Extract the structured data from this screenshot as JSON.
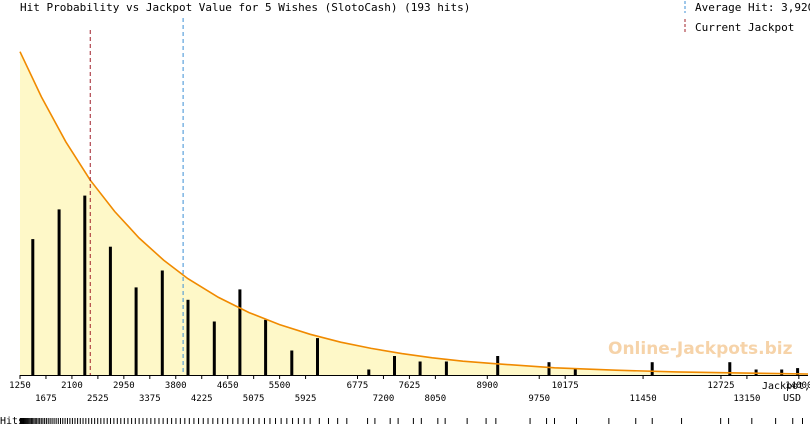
{
  "chart_data": {
    "type": "bar",
    "title": "Hit Probability vs Jackpot Value for 5 Wishes (SlotoCash) (193 hits)",
    "xlabel_line1": "Jackpot,",
    "xlabel_line2": "USD",
    "rug_label": "Hits",
    "watermark": "Online-Jackpots.biz",
    "xlim": [
      1250,
      14150
    ],
    "ylim": [
      0,
      1
    ],
    "legend": [
      {
        "label": "Average Hit: 3,920",
        "color": "#3c8fd6",
        "style": "dashed"
      },
      {
        "label": "Current Jackpot",
        "color": "#a0202a",
        "style": "dashed"
      }
    ],
    "reference_lines": {
      "average_hit": 3920,
      "current_jackpot": 2400
    },
    "ticks_row1": [
      1250,
      2100,
      2950,
      3800,
      4650,
      5500,
      6775,
      7625,
      8900,
      10175,
      12725,
      14000
    ],
    "ticks_row2": [
      1675,
      2525,
      3375,
      4225,
      5075,
      5925,
      7200,
      8050,
      9750,
      11450,
      13150
    ],
    "bars": {
      "x": [
        1460,
        1890,
        2310,
        2730,
        3150,
        3580,
        4000,
        4430,
        4850,
        5270,
        5700,
        6120,
        6960,
        7380,
        7800,
        8230,
        9070,
        9910,
        10340,
        11600,
        12870,
        13300,
        13720,
        13980
      ],
      "values": [
        0.394,
        0.48,
        0.52,
        0.372,
        0.254,
        0.303,
        0.218,
        0.155,
        0.248,
        0.16,
        0.071,
        0.107,
        0.016,
        0.055,
        0.039,
        0.039,
        0.055,
        0.037,
        0.02,
        0.037,
        0.037,
        0.016,
        0.016,
        0.02
      ]
    },
    "curve": {
      "x": [
        1250,
        1600,
        2000,
        2400,
        2800,
        3200,
        3600,
        4000,
        4500,
        5000,
        5500,
        6000,
        6500,
        7000,
        7500,
        8000,
        8500,
        9000,
        10000,
        11000,
        12000,
        13000,
        14150
      ],
      "values": [
        0.937,
        0.806,
        0.676,
        0.565,
        0.474,
        0.397,
        0.333,
        0.279,
        0.225,
        0.181,
        0.146,
        0.118,
        0.095,
        0.077,
        0.062,
        0.05,
        0.04,
        0.033,
        0.021,
        0.014,
        0.009,
        0.006,
        0.003
      ]
    },
    "hits_rug": [
      1255,
      1262,
      1271,
      1280,
      1290,
      1301,
      1312,
      1325,
      1338,
      1352,
      1367,
      1383,
      1400,
      1418,
      1437,
      1457,
      1478,
      1500,
      1523,
      1547,
      1572,
      1598,
      1625,
      1653,
      1682,
      1712,
      1743,
      1775,
      1808,
      1842,
      1877,
      1913,
      1950,
      1988,
      2027,
      2067,
      2108,
      2150,
      2193,
      2237,
      2282,
      2328,
      2375,
      2423,
      2472,
      2522,
      2573,
      2625,
      2678,
      2732,
      2787,
      2843,
      2900,
      2958,
      3017,
      3077,
      3138,
      3200,
      3263,
      3327,
      3392,
      3458,
      3525,
      3593,
      3662,
      3732,
      3803,
      3875,
      3948,
      4022,
      4097,
      4173,
      4250,
      4328,
      4407,
      4487,
      4568,
      4650,
      4733,
      4817,
      4902,
      4988,
      5075,
      5163,
      5252,
      5342,
      5433,
      5525,
      5618,
      5712,
      5807,
      5903,
      6000,
      6150,
      6300,
      6450,
      6600,
      6940,
      7060,
      7310,
      7440,
      7690,
      7820,
      8090,
      8210,
      8570,
      8880,
      9040,
      9600,
      9870,
      10000,
      10360,
      10890,
      11330,
      11600,
      12080,
      12720,
      12850,
      13230,
      13620,
      13900,
      14060
    ]
  }
}
